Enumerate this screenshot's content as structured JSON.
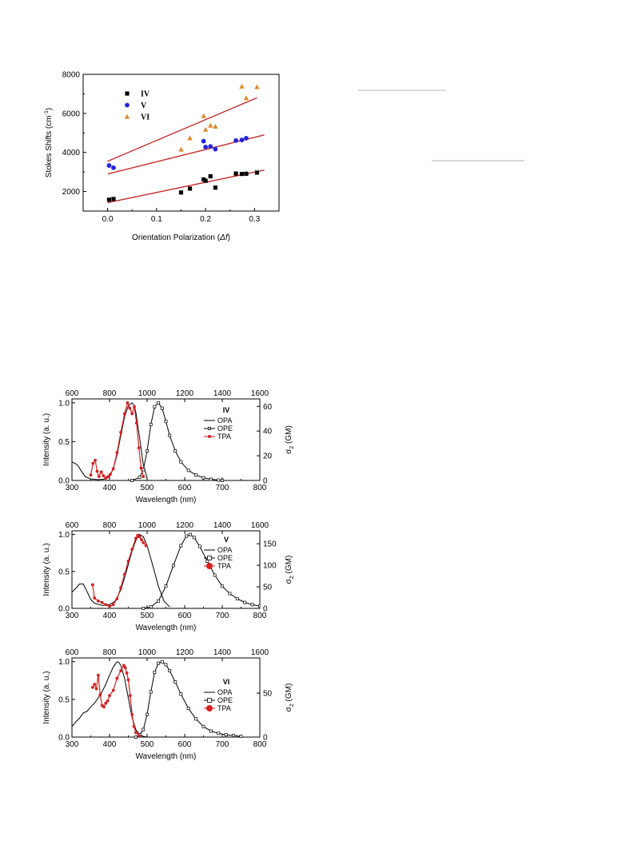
{
  "chart_data": [
    {
      "type": "scatter",
      "xlabel": "Orientation Polarization (",
      "xlabel_sym": "Δf",
      "xlabel_end": ")",
      "ylabel": "Stokes Shifts (cm",
      "ylabel_sup": "-1",
      "ylabel_end": ")",
      "xlim": [
        -0.05,
        0.35
      ],
      "ylim": [
        1000,
        8000
      ],
      "xticks": [
        "0.0",
        "0.1",
        "0.2",
        "0.3"
      ],
      "yticks": [
        "2000",
        "4000",
        "6000",
        "8000"
      ],
      "legend_placement": "top-left",
      "series": [
        {
          "name": "IV",
          "marker": "square",
          "color": "#000000",
          "x": [
            0.003,
            0.012,
            0.15,
            0.168,
            0.196,
            0.2,
            0.21,
            0.22,
            0.262,
            0.274,
            0.283,
            0.305
          ],
          "y": [
            1580,
            1620,
            1950,
            2150,
            2620,
            2550,
            2780,
            2200,
            2920,
            2900,
            2910,
            2970
          ],
          "fit": [
            [
              0.0,
              1430
            ],
            [
              0.32,
              3100
            ]
          ]
        },
        {
          "name": "V",
          "marker": "circle",
          "color": "#2323e0",
          "x": [
            0.003,
            0.012,
            0.196,
            0.2,
            0.21,
            0.22,
            0.262,
            0.274,
            0.283
          ],
          "y": [
            3330,
            3220,
            4580,
            4280,
            4310,
            4170,
            4610,
            4640,
            4730
          ],
          "fit": [
            [
              0.0,
              2900
            ],
            [
              0.32,
              4900
            ]
          ]
        },
        {
          "name": "VI",
          "marker": "triangle",
          "color": "#e08a28",
          "x": [
            0.15,
            0.168,
            0.196,
            0.2,
            0.21,
            0.22,
            0.274,
            0.283,
            0.305
          ],
          "y": [
            4150,
            4730,
            5870,
            5170,
            5380,
            5330,
            7380,
            6780,
            7350
          ],
          "fit": [
            [
              0.0,
              3550
            ],
            [
              0.305,
              6800
            ]
          ]
        }
      ],
      "fit_color": "#c81e1e"
    },
    {
      "type": "line",
      "panel_label": "IV",
      "xlabel": "Wavelength (nm)",
      "ylabel": "Intensity (a. u.)",
      "y2label": "σ",
      "y2label_sub": "2",
      "y2label_end": " (GM)",
      "xlim": [
        300,
        800
      ],
      "ylim": [
        0,
        1.05
      ],
      "top_xlim": [
        600,
        1600
      ],
      "y2lim": [
        0,
        66
      ],
      "xticks": [
        "300",
        "400",
        "500",
        "600",
        "700",
        "800"
      ],
      "top_xticks": [
        "600",
        "800",
        "1000",
        "1200",
        "1400",
        "1600"
      ],
      "yticks": [
        "0.0",
        "0.5",
        "1.0"
      ],
      "y2ticks": [
        "0",
        "20",
        "40",
        "60"
      ],
      "legend": [
        "OPA",
        "OPE",
        "TPA"
      ],
      "series": [
        {
          "name": "OPA",
          "color": "#000000",
          "x": [
            300,
            315,
            325,
            335,
            350,
            370,
            390,
            400,
            410,
            420,
            430,
            440,
            450,
            460,
            465,
            470,
            480,
            490,
            500
          ],
          "y": [
            0.24,
            0.2,
            0.12,
            0.05,
            0.02,
            0.01,
            0.02,
            0.05,
            0.15,
            0.33,
            0.58,
            0.82,
            0.96,
            1.0,
            0.97,
            0.88,
            0.55,
            0.2,
            0.03
          ]
        },
        {
          "name": "OPE",
          "color": "#000000",
          "x": [
            460,
            480,
            490,
            500,
            510,
            520,
            530,
            540,
            550,
            560,
            575,
            590,
            610,
            630,
            650,
            670,
            690,
            700
          ],
          "y": [
            0.0,
            0.04,
            0.14,
            0.38,
            0.72,
            0.95,
            1.0,
            0.93,
            0.76,
            0.58,
            0.38,
            0.24,
            0.13,
            0.07,
            0.035,
            0.015,
            0.005,
            0.0
          ]
        },
        {
          "name": "TPA",
          "color": "#d42020",
          "x": [
            350,
            356,
            362,
            367,
            372,
            378,
            384,
            390,
            396,
            402,
            410,
            420,
            430,
            440,
            448,
            454,
            460,
            466,
            472,
            478,
            484,
            490
          ],
          "y": [
            0.07,
            0.22,
            0.26,
            0.12,
            0.05,
            0.11,
            0.06,
            0.03,
            0.05,
            0.08,
            0.15,
            0.36,
            0.62,
            0.86,
            1.0,
            0.93,
            0.86,
            0.95,
            0.74,
            0.42,
            0.16,
            0.05
          ]
        }
      ]
    },
    {
      "type": "line",
      "panel_label": "V",
      "xlabel": "Wavelength (nm)",
      "ylabel": "Intensity (a. u.)",
      "y2label": "σ",
      "y2label_sub": "2",
      "y2label_end": " (GM)",
      "xlim": [
        300,
        800
      ],
      "ylim": [
        0,
        1.05
      ],
      "top_xlim": [
        600,
        1600
      ],
      "y2lim": [
        0,
        180
      ],
      "xticks": [
        "300",
        "400",
        "500",
        "600",
        "700",
        "800"
      ],
      "top_xticks": [
        "600",
        "800",
        "1000",
        "1200",
        "1400",
        "1600"
      ],
      "yticks": [
        "0.0",
        "0.5",
        "1.0"
      ],
      "y2ticks": [
        "0",
        "50",
        "100",
        "150"
      ],
      "legend": [
        "OPA",
        "OPE",
        "TPA"
      ],
      "series": [
        {
          "name": "OPA",
          "color": "#000000",
          "x": [
            300,
            310,
            320,
            330,
            340,
            350,
            360,
            380,
            400,
            415,
            430,
            445,
            460,
            470,
            480,
            490,
            500,
            515,
            530,
            545,
            560
          ],
          "y": [
            0.22,
            0.27,
            0.33,
            0.33,
            0.23,
            0.12,
            0.07,
            0.04,
            0.05,
            0.1,
            0.25,
            0.5,
            0.78,
            0.92,
            1.0,
            0.97,
            0.85,
            0.58,
            0.3,
            0.1,
            0.02
          ]
        },
        {
          "name": "OPE",
          "color": "#000000",
          "x": [
            490,
            510,
            530,
            550,
            570,
            590,
            605,
            615,
            625,
            640,
            660,
            680,
            700,
            720,
            740,
            760,
            780,
            800
          ],
          "y": [
            0.0,
            0.02,
            0.1,
            0.3,
            0.58,
            0.85,
            0.98,
            1.0,
            0.96,
            0.84,
            0.64,
            0.45,
            0.3,
            0.2,
            0.13,
            0.08,
            0.05,
            0.03
          ]
        },
        {
          "name": "TPA",
          "color": "#d42020",
          "x": [
            355,
            360,
            370,
            380,
            390,
            400,
            410,
            420,
            430,
            440,
            450,
            460,
            470,
            475,
            480,
            485,
            490,
            497
          ],
          "y": [
            0.32,
            0.14,
            0.1,
            0.08,
            0.05,
            0.03,
            0.05,
            0.13,
            0.28,
            0.46,
            0.64,
            0.8,
            0.95,
            0.99,
            0.97,
            0.93,
            0.89,
            0.85
          ]
        }
      ]
    },
    {
      "type": "line",
      "panel_label": "VI",
      "xlabel": "Wavelength (nm)",
      "ylabel": "Intensity (a. u.)",
      "y2label": "σ",
      "y2label_sub": "2",
      "y2label_end": " (GM)",
      "xlim": [
        300,
        800
      ],
      "ylim": [
        0,
        1.05
      ],
      "top_xlim": [
        600,
        1600
      ],
      "y2lim": [
        0,
        90
      ],
      "xticks": [
        "300",
        "400",
        "500",
        "600",
        "700",
        "800"
      ],
      "top_xticks": [
        "600",
        "800",
        "1000",
        "1200",
        "1400",
        "1600"
      ],
      "yticks": [
        "0.0",
        "0.5",
        "1.0"
      ],
      "y2ticks": [
        "0",
        "50"
      ],
      "legend": [
        "OPA",
        "OPE",
        "TPA"
      ],
      "series": [
        {
          "name": "OPA",
          "color": "#000000",
          "x": [
            300,
            310,
            320,
            330,
            340,
            350,
            360,
            370,
            380,
            390,
            400,
            410,
            420,
            425,
            430,
            440,
            450,
            460,
            470,
            480,
            490,
            500
          ],
          "y": [
            0.14,
            0.2,
            0.25,
            0.32,
            0.34,
            0.4,
            0.45,
            0.52,
            0.6,
            0.7,
            0.82,
            0.93,
            1.0,
            0.99,
            0.95,
            0.78,
            0.52,
            0.26,
            0.1,
            0.03,
            0.01,
            0.0
          ]
        },
        {
          "name": "OPE",
          "color": "#000000",
          "x": [
            470,
            480,
            490,
            500,
            510,
            520,
            530,
            540,
            550,
            560,
            575,
            590,
            610,
            630,
            650,
            670,
            690,
            710,
            730,
            750
          ],
          "y": [
            0.0,
            0.03,
            0.1,
            0.3,
            0.6,
            0.86,
            0.98,
            1.0,
            0.96,
            0.88,
            0.73,
            0.57,
            0.38,
            0.24,
            0.14,
            0.08,
            0.05,
            0.03,
            0.02,
            0.01
          ]
        },
        {
          "name": "TPA",
          "color": "#d42020",
          "x": [
            355,
            360,
            365,
            370,
            375,
            380,
            385,
            390,
            395,
            400,
            410,
            420,
            430,
            438,
            442,
            446,
            450,
            455,
            460,
            465,
            470,
            478
          ],
          "y": [
            0.66,
            0.7,
            0.64,
            0.82,
            0.56,
            0.42,
            0.4,
            0.45,
            0.48,
            0.55,
            0.62,
            0.78,
            0.88,
            0.95,
            0.92,
            0.85,
            0.76,
            0.55,
            0.3,
            0.14,
            0.06,
            0.02
          ]
        }
      ]
    }
  ]
}
